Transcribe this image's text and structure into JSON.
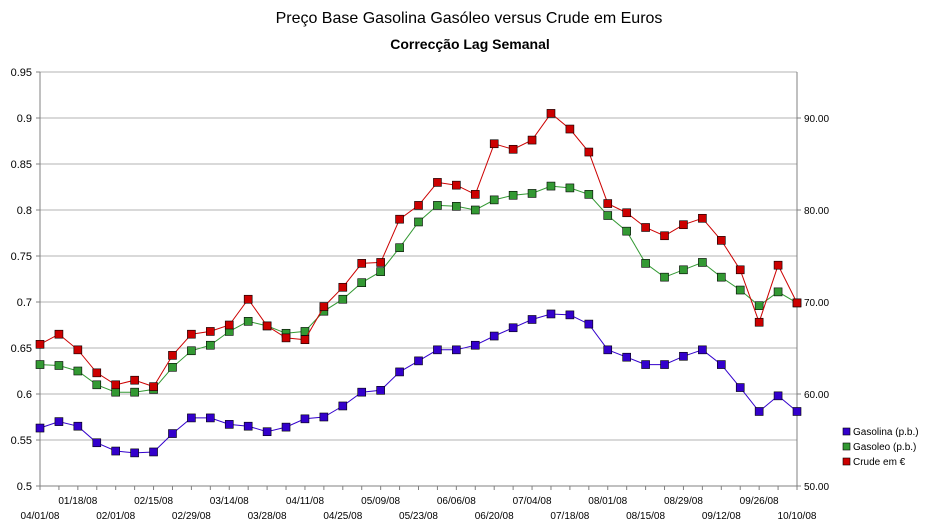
{
  "chart_data": {
    "type": "line",
    "title": "Preço Base Gasolina Gasóleo versus Crude em Euros",
    "subtitle": "Correcção Lag Semanal",
    "ylim": [
      0.5,
      0.95
    ],
    "y_ticks": [
      "0.5",
      "0.55",
      "0.6",
      "0.65",
      "0.7",
      "0.75",
      "0.8",
      "0.85",
      "0.9",
      "0.95"
    ],
    "y2lim": [
      50,
      95
    ],
    "y2_ticks": [
      "50.00",
      "60.00",
      "70.00",
      "80.00",
      "90.00"
    ],
    "x_labels_row1": [
      "01/18/08",
      "02/15/08",
      "03/14/08",
      "04/11/08",
      "05/09/08",
      "06/06/08",
      "07/04/08",
      "08/01/08",
      "08/29/08",
      "09/26/08"
    ],
    "x_labels_row2": [
      "04/01/08",
      "02/01/08",
      "02/29/08",
      "03/28/08",
      "04/25/08",
      "05/23/08",
      "06/20/08",
      "07/18/08",
      "08/15/08",
      "09/12/08",
      "10/10/08"
    ],
    "grid": true,
    "legend_position": "right",
    "series": [
      {
        "name": "Gasolina (p.b.)",
        "color": "#3300cc",
        "axis": "left",
        "values": [
          0.563,
          0.57,
          0.565,
          0.547,
          0.538,
          0.536,
          0.537,
          0.557,
          0.574,
          0.574,
          0.567,
          0.565,
          0.559,
          0.564,
          0.573,
          0.575,
          0.587,
          0.602,
          0.604,
          0.624,
          0.636,
          0.648,
          0.648,
          0.653,
          0.663,
          0.672,
          0.681,
          0.687,
          0.686,
          0.676,
          0.648,
          0.64,
          0.632,
          0.632,
          0.641,
          0.648,
          0.632,
          0.607,
          0.581,
          0.598,
          0.581
        ]
      },
      {
        "name": "Gasoleo (p.b.)",
        "color": "#339933",
        "axis": "left",
        "values": [
          0.632,
          0.631,
          0.625,
          0.61,
          0.602,
          0.602,
          0.605,
          0.629,
          0.647,
          0.653,
          0.668,
          0.679,
          0.674,
          0.666,
          0.668,
          0.69,
          0.703,
          0.721,
          0.733,
          0.759,
          0.787,
          0.805,
          0.804,
          0.8,
          0.811,
          0.816,
          0.818,
          0.826,
          0.824,
          0.817,
          0.794,
          0.777,
          0.742,
          0.727,
          0.735,
          0.743,
          0.727,
          0.713,
          0.696,
          0.711,
          0.699
        ]
      },
      {
        "name": "Crude em €",
        "color": "#cc0000",
        "axis": "right",
        "values": [
          65.4,
          66.5,
          64.8,
          62.3,
          61.0,
          61.5,
          60.8,
          64.2,
          66.5,
          66.8,
          67.5,
          70.3,
          67.4,
          66.1,
          65.9,
          69.5,
          71.6,
          74.2,
          74.3,
          79.0,
          80.5,
          83.0,
          82.7,
          81.7,
          87.2,
          86.6,
          87.6,
          90.5,
          88.8,
          86.3,
          80.7,
          79.7,
          78.1,
          77.2,
          78.4,
          79.1,
          76.7,
          73.5,
          67.8,
          74.0,
          69.9
        ]
      }
    ]
  }
}
